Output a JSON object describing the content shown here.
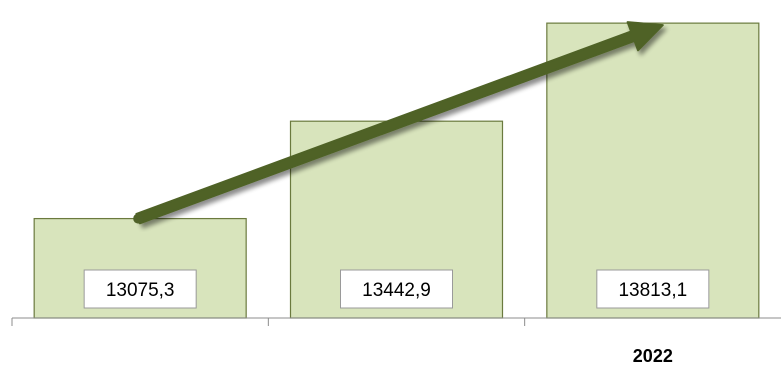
{
  "chart_data": {
    "type": "bar",
    "categories": [
      "",
      "",
      "2022"
    ],
    "values": [
      13075.3,
      13442.9,
      13813.1
    ],
    "value_labels": [
      "13075,3",
      "13442,9",
      "13813,1"
    ],
    "title": "",
    "xlabel": "",
    "ylabel": "",
    "ylim": [
      12700,
      13840
    ],
    "grid": false,
    "legend": "none",
    "trend_arrow": true,
    "colors": {
      "bar_fill": "#d8e4bc",
      "bar_stroke": "#6b7a3e",
      "arrow": "#4f6228"
    }
  }
}
